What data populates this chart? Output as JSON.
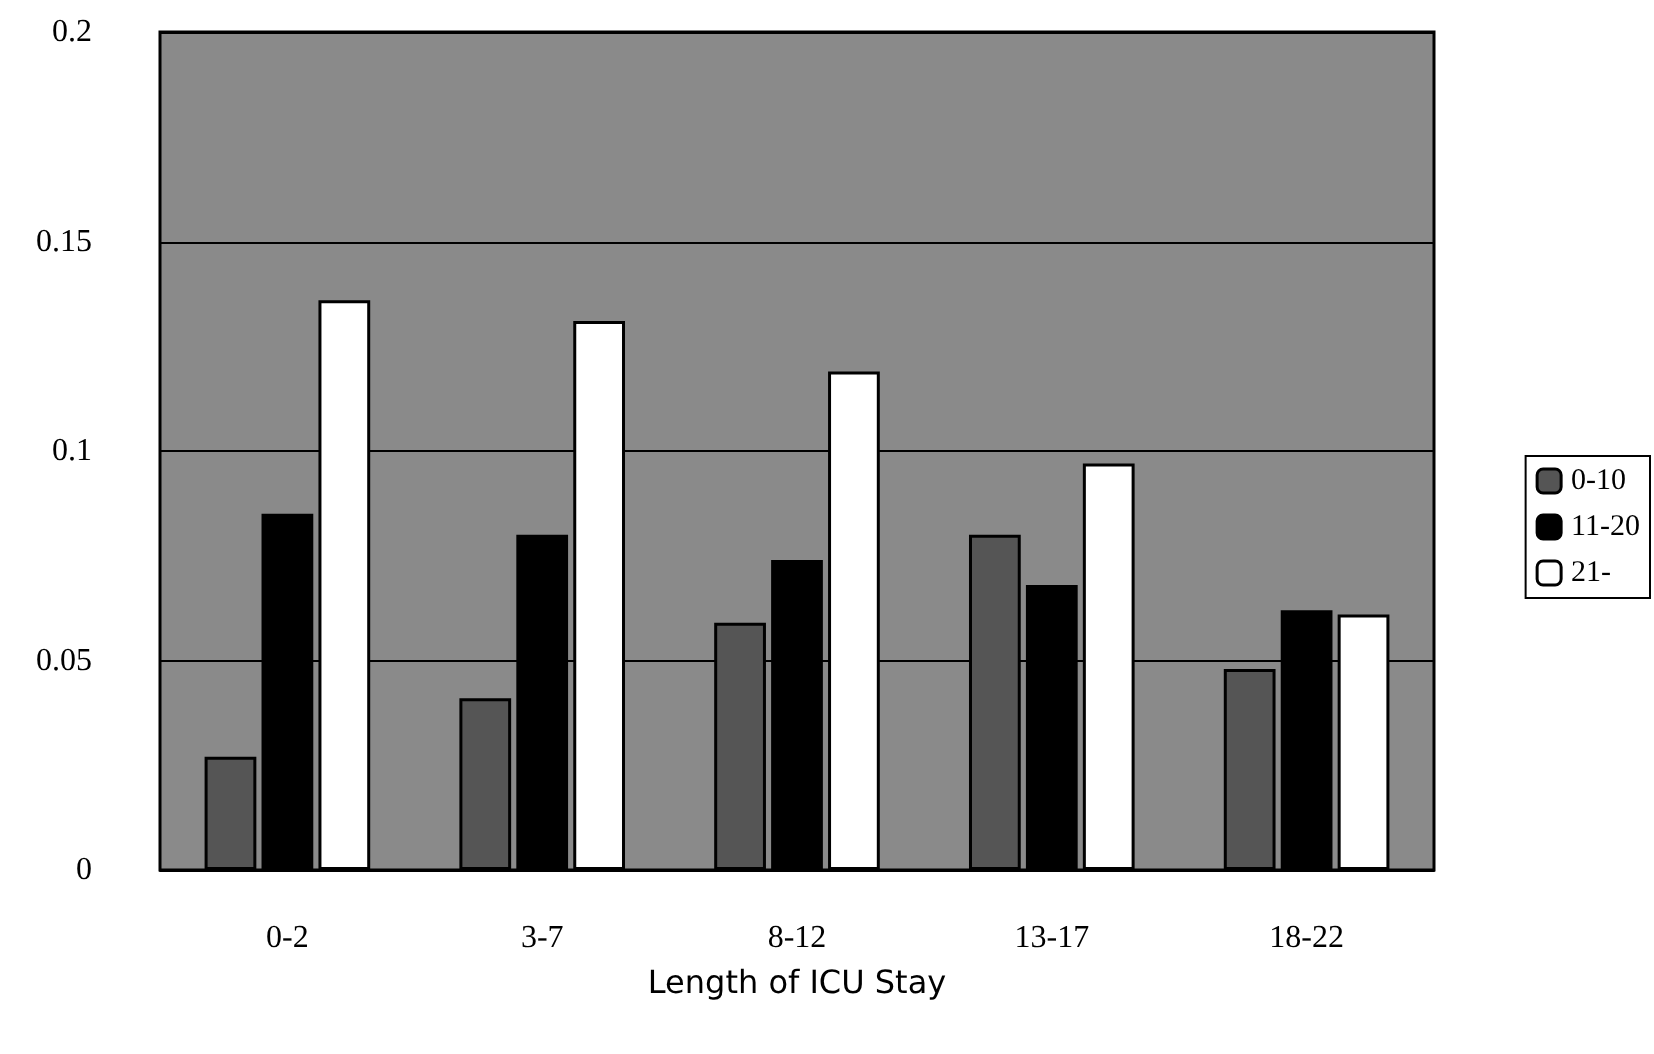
{
  "chart_data": {
    "type": "bar",
    "xlabel": "Length of ICU Stay",
    "categories": [
      "0-2",
      "3-7",
      "8-12",
      "13-17",
      "18-22"
    ],
    "series": [
      {
        "name": "0-10",
        "color": "#555555",
        "values": [
          0.027,
          0.041,
          0.059,
          0.08,
          0.048
        ]
      },
      {
        "name": "11-20",
        "color": "#000000",
        "values": [
          0.085,
          0.08,
          0.074,
          0.068,
          0.062
        ]
      },
      {
        "name": "21-",
        "color": "#ffffff",
        "values": [
          0.136,
          0.131,
          0.119,
          0.097,
          0.061
        ]
      }
    ],
    "ylim": [
      0,
      0.2
    ],
    "yticks": [
      0,
      0.05,
      0.1,
      0.15,
      0.2
    ],
    "grid": "y",
    "legend": "right"
  }
}
